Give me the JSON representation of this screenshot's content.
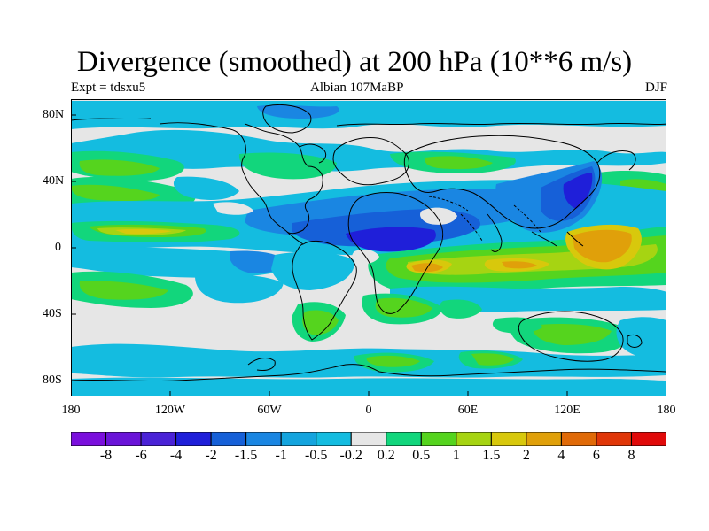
{
  "title": "Divergence (smoothed) at 200 hPa (10**6 m/s)",
  "subtitle_left": "Expt = tdsxu5",
  "subtitle_center": "Albian   107MaBP",
  "subtitle_right": "DJF",
  "lat_labels": [
    "80N",
    "40N",
    "0",
    "40S",
    "80S"
  ],
  "lon_labels": [
    "180",
    "120W",
    "60W",
    "0",
    "60E",
    "120E",
    "180"
  ],
  "colorbar": {
    "labels": [
      "-8",
      "-6",
      "-4",
      "-2",
      "-1.5",
      "-1",
      "-0.5",
      "-0.2",
      "0.2",
      "0.5",
      "1",
      "1.5",
      "2",
      "4",
      "6",
      "8"
    ],
    "colors": [
      "#7a0fdc",
      "#6a14d8",
      "#4a22d6",
      "#1f1fd9",
      "#1660d8",
      "#1a86e2",
      "#14a4de",
      "#14bce0",
      "#e6e6e6",
      "#12d67c",
      "#55d41e",
      "#a6d412",
      "#d8c80c",
      "#e0a00a",
      "#e06a08",
      "#e03608",
      "#e00a0a"
    ]
  },
  "colors": {
    "land_outline": "#000000",
    "neutral": "#e6e6e6"
  }
}
